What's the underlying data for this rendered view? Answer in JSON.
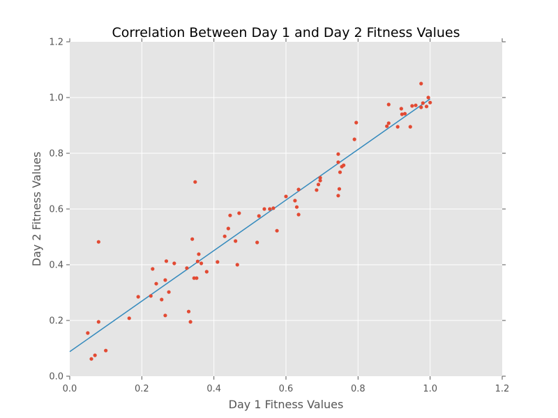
{
  "chart_data": {
    "type": "scatter",
    "title": "Correlation Between Day 1 and Day 2 Fitness Values",
    "xlabel": "Day 1 Fitness Values",
    "ylabel": "Day 2 Fitness Values",
    "xlim": [
      0.0,
      1.2
    ],
    "ylim": [
      0.0,
      1.2
    ],
    "xticks": [
      "0.0",
      "0.2",
      "0.4",
      "0.6",
      "0.8",
      "1.0",
      "1.2"
    ],
    "yticks": [
      "0.0",
      "0.2",
      "0.4",
      "0.6",
      "0.8",
      "1.0",
      "1.2"
    ],
    "grid": true,
    "background_color": "#e5e5e5",
    "point_color": "#e24a33",
    "line_color": "#348abd",
    "points": [
      [
        0.05,
        0.155
      ],
      [
        0.06,
        0.062
      ],
      [
        0.07,
        0.075
      ],
      [
        0.08,
        0.195
      ],
      [
        0.08,
        0.482
      ],
      [
        0.1,
        0.092
      ],
      [
        0.165,
        0.208
      ],
      [
        0.19,
        0.285
      ],
      [
        0.225,
        0.288
      ],
      [
        0.23,
        0.385
      ],
      [
        0.24,
        0.332
      ],
      [
        0.255,
        0.275
      ],
      [
        0.265,
        0.345
      ],
      [
        0.265,
        0.218
      ],
      [
        0.268,
        0.413
      ],
      [
        0.275,
        0.302
      ],
      [
        0.29,
        0.405
      ],
      [
        0.325,
        0.388
      ],
      [
        0.33,
        0.232
      ],
      [
        0.335,
        0.195
      ],
      [
        0.34,
        0.492
      ],
      [
        0.345,
        0.352
      ],
      [
        0.348,
        0.697
      ],
      [
        0.352,
        0.352
      ],
      [
        0.355,
        0.412
      ],
      [
        0.358,
        0.438
      ],
      [
        0.365,
        0.405
      ],
      [
        0.38,
        0.375
      ],
      [
        0.41,
        0.41
      ],
      [
        0.43,
        0.502
      ],
      [
        0.44,
        0.53
      ],
      [
        0.445,
        0.577
      ],
      [
        0.46,
        0.485
      ],
      [
        0.465,
        0.4
      ],
      [
        0.47,
        0.585
      ],
      [
        0.52,
        0.48
      ],
      [
        0.525,
        0.575
      ],
      [
        0.54,
        0.6
      ],
      [
        0.555,
        0.6
      ],
      [
        0.565,
        0.603
      ],
      [
        0.575,
        0.522
      ],
      [
        0.6,
        0.645
      ],
      [
        0.625,
        0.63
      ],
      [
        0.63,
        0.607
      ],
      [
        0.635,
        0.67
      ],
      [
        0.635,
        0.58
      ],
      [
        0.685,
        0.668
      ],
      [
        0.69,
        0.688
      ],
      [
        0.695,
        0.712
      ],
      [
        0.695,
        0.702
      ],
      [
        0.745,
        0.648
      ],
      [
        0.745,
        0.768
      ],
      [
        0.745,
        0.797
      ],
      [
        0.748,
        0.672
      ],
      [
        0.75,
        0.732
      ],
      [
        0.755,
        0.752
      ],
      [
        0.76,
        0.757
      ],
      [
        0.79,
        0.85
      ],
      [
        0.795,
        0.91
      ],
      [
        0.88,
        0.897
      ],
      [
        0.885,
        0.908
      ],
      [
        0.885,
        0.975
      ],
      [
        0.91,
        0.895
      ],
      [
        0.92,
        0.96
      ],
      [
        0.922,
        0.94
      ],
      [
        0.93,
        0.942
      ],
      [
        0.945,
        0.895
      ],
      [
        0.95,
        0.97
      ],
      [
        0.96,
        0.972
      ],
      [
        0.975,
        1.05
      ],
      [
        0.975,
        0.965
      ],
      [
        0.98,
        0.98
      ],
      [
        0.99,
        0.968
      ],
      [
        0.995,
        1.0
      ],
      [
        1.0,
        0.982
      ]
    ],
    "fit_line": {
      "x": [
        0.0,
        1.0
      ],
      "y": [
        0.088,
        0.995
      ]
    }
  }
}
